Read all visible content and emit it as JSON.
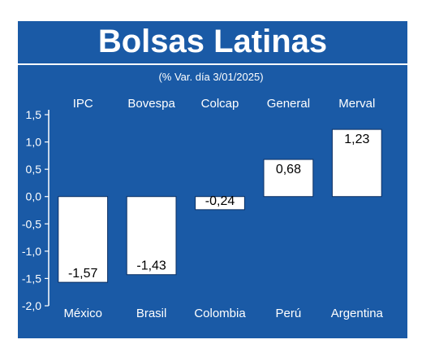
{
  "title": "Bolsas Latinas",
  "chart_data": {
    "type": "bar",
    "subtitle": "(% Var. día 3/01/2025)",
    "indices": [
      "IPC",
      "Bovespa",
      "Colcap",
      "General",
      "Merval"
    ],
    "categories": [
      "México",
      "Brasil",
      "Colombia",
      "Perú",
      "Argentina"
    ],
    "values": [
      -1.57,
      -1.43,
      -0.24,
      0.68,
      1.23
    ],
    "value_labels": [
      "-1,57",
      "-1,43",
      "-0,24",
      "0,68",
      "1,23"
    ],
    "yticks": [
      1.5,
      1.0,
      0.5,
      0.0,
      -0.5,
      -1.0,
      -1.5,
      -2.0
    ],
    "ytick_labels": [
      "1,5",
      "1,0",
      "0,5",
      "0,0",
      "-0,5",
      "-1,0",
      "-1,5",
      "-2,0"
    ],
    "ylim": [
      -2.0,
      1.5
    ],
    "colors": {
      "background": "#1a5aa6",
      "bar": "#ffffff",
      "text": "#ffffff",
      "value_text": "#000000"
    }
  }
}
